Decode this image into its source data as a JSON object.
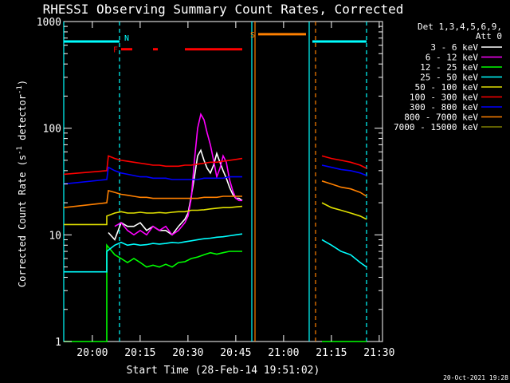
{
  "chart_data": {
    "type": "line",
    "title": "RHESSI Observing Summary Count Rates, Corrected",
    "xlabel": "Start Time (28-Feb-14 19:51:02)",
    "ylabel_parts": {
      "main": "Corrected Count Rate (s",
      "sup1": "-1",
      "mid": " detector",
      "sup2": "-1",
      "end": ")"
    },
    "x_unit": "minutes since 19:51:02",
    "xlim": [
      0,
      100
    ],
    "ylim": [
      1,
      1000
    ],
    "y_scale": "log",
    "x_ticks": [
      {
        "x": 8.97,
        "label": "20:00"
      },
      {
        "x": 23.97,
        "label": "20:15"
      },
      {
        "x": 38.97,
        "label": "20:30"
      },
      {
        "x": 53.97,
        "label": "20:45"
      },
      {
        "x": 68.97,
        "label": "21:00"
      },
      {
        "x": 83.97,
        "label": "21:15"
      },
      {
        "x": 98.97,
        "label": "21:30"
      }
    ],
    "y_ticks": [
      {
        "y": 1,
        "label": "1"
      },
      {
        "y": 10,
        "label": "10"
      },
      {
        "y": 100,
        "label": "100"
      },
      {
        "y": 1000,
        "label": "1000"
      }
    ],
    "legend_header": [
      "Det 1,3,4,5,6,9,",
      "Att 0"
    ],
    "legend_position": "right",
    "series": [
      {
        "name": "3 - 6 keV",
        "color": "#ffffff",
        "points": [
          [
            14,
            10.5
          ],
          [
            16,
            9
          ],
          [
            18,
            13
          ],
          [
            20,
            12
          ],
          [
            22,
            12
          ],
          [
            24,
            13
          ],
          [
            26,
            11
          ],
          [
            28,
            12
          ],
          [
            30,
            11
          ],
          [
            32,
            11
          ],
          [
            34,
            10
          ],
          [
            36,
            12
          ],
          [
            38,
            14
          ],
          [
            39,
            16
          ],
          [
            40,
            23
          ],
          [
            41,
            35
          ],
          [
            42,
            55
          ],
          [
            43,
            62
          ],
          [
            44,
            50
          ],
          [
            45,
            42
          ],
          [
            46,
            38
          ],
          [
            47,
            45
          ],
          [
            48,
            58
          ],
          [
            49,
            48
          ],
          [
            50,
            40
          ],
          [
            51,
            34
          ],
          [
            52,
            28
          ],
          [
            53,
            24
          ],
          [
            54,
            22
          ],
          [
            55,
            22
          ],
          [
            56,
            21
          ]
        ]
      },
      {
        "name": "6 - 12 keV",
        "color": "#ff00ff",
        "points": [
          [
            16,
            12
          ],
          [
            18,
            13
          ],
          [
            20,
            11
          ],
          [
            22,
            10
          ],
          [
            24,
            11
          ],
          [
            26,
            10
          ],
          [
            28,
            12
          ],
          [
            30,
            11
          ],
          [
            32,
            12
          ],
          [
            34,
            10
          ],
          [
            36,
            11
          ],
          [
            38,
            13
          ],
          [
            39,
            15
          ],
          [
            40,
            22
          ],
          [
            41,
            50
          ],
          [
            42,
            100
          ],
          [
            43,
            135
          ],
          [
            44,
            120
          ],
          [
            45,
            90
          ],
          [
            46,
            70
          ],
          [
            47,
            50
          ],
          [
            48,
            35
          ],
          [
            49,
            42
          ],
          [
            50,
            55
          ],
          [
            51,
            48
          ],
          [
            52,
            33
          ],
          [
            53,
            26
          ],
          [
            54,
            22
          ],
          [
            55,
            21
          ],
          [
            56,
            21
          ]
        ]
      },
      {
        "name": "12 - 25 keV",
        "color": "#00ff00",
        "points": [
          [
            0,
            1
          ],
          [
            13.5,
            1
          ],
          [
            13.5,
            8
          ],
          [
            16,
            6.5
          ],
          [
            18,
            6
          ],
          [
            20,
            5.5
          ],
          [
            22,
            6
          ],
          [
            24,
            5.5
          ],
          [
            26,
            5
          ],
          [
            28,
            5.2
          ],
          [
            30,
            5
          ],
          [
            32,
            5.3
          ],
          [
            34,
            5
          ],
          [
            36,
            5.5
          ],
          [
            38,
            5.6
          ],
          [
            40,
            6
          ],
          [
            42,
            6.2
          ],
          [
            44,
            6.5
          ],
          [
            46,
            6.8
          ],
          [
            48,
            6.6
          ],
          [
            50,
            6.8
          ],
          [
            52,
            7
          ],
          [
            54,
            7
          ],
          [
            56,
            7
          ]
        ]
      },
      {
        "name": "25 - 50 keV",
        "color": "#00ffff",
        "points": [
          [
            0,
            4.5
          ],
          [
            13.5,
            4.5
          ],
          [
            13.5,
            7
          ],
          [
            16,
            8
          ],
          [
            18,
            8.5
          ],
          [
            20,
            8
          ],
          [
            22,
            8.2
          ],
          [
            24,
            8
          ],
          [
            26,
            8.1
          ],
          [
            28,
            8.3
          ],
          [
            30,
            8.2
          ],
          [
            32,
            8.3
          ],
          [
            34,
            8.5
          ],
          [
            36,
            8.4
          ],
          [
            38,
            8.6
          ],
          [
            40,
            8.8
          ],
          [
            42,
            9
          ],
          [
            44,
            9.2
          ],
          [
            46,
            9.3
          ],
          [
            48,
            9.5
          ],
          [
            50,
            9.6
          ],
          [
            52,
            9.8
          ],
          [
            54,
            10
          ],
          [
            56,
            10.2
          ]
        ]
      },
      {
        "name": "50 - 100 keV",
        "color": "#e0e000",
        "points": [
          [
            0,
            12.5
          ],
          [
            13.5,
            12.5
          ],
          [
            13.5,
            15
          ],
          [
            16,
            16
          ],
          [
            18,
            16.5
          ],
          [
            20,
            16
          ],
          [
            22,
            16
          ],
          [
            24,
            16.3
          ],
          [
            26,
            16
          ],
          [
            28,
            16
          ],
          [
            30,
            16.2
          ],
          [
            32,
            16
          ],
          [
            34,
            16.3
          ],
          [
            36,
            16.5
          ],
          [
            38,
            16.5
          ],
          [
            40,
            17
          ],
          [
            42,
            17
          ],
          [
            44,
            17.2
          ],
          [
            46,
            17.5
          ],
          [
            48,
            17.8
          ],
          [
            50,
            18
          ],
          [
            52,
            18
          ],
          [
            54,
            18.3
          ],
          [
            56,
            18.5
          ]
        ]
      },
      {
        "name": "100 - 300 keV",
        "color": "#ff0000",
        "points": [
          [
            0,
            37
          ],
          [
            13.5,
            40
          ],
          [
            14,
            55
          ],
          [
            16,
            52
          ],
          [
            18,
            50
          ],
          [
            20,
            49
          ],
          [
            22,
            48
          ],
          [
            24,
            47
          ],
          [
            26,
            46
          ],
          [
            28,
            45
          ],
          [
            30,
            45
          ],
          [
            32,
            44
          ],
          [
            34,
            44
          ],
          [
            36,
            44
          ],
          [
            38,
            45
          ],
          [
            40,
            45
          ],
          [
            42,
            46
          ],
          [
            44,
            47
          ],
          [
            46,
            48
          ],
          [
            48,
            48
          ],
          [
            50,
            49
          ],
          [
            52,
            50
          ],
          [
            54,
            51
          ],
          [
            56,
            52
          ]
        ]
      },
      {
        "name": "300 - 800 keV",
        "color": "#0000ff",
        "points": [
          [
            0,
            30
          ],
          [
            13.5,
            33
          ],
          [
            14,
            43
          ],
          [
            16,
            40
          ],
          [
            18,
            38
          ],
          [
            20,
            37
          ],
          [
            22,
            36
          ],
          [
            24,
            35
          ],
          [
            26,
            35
          ],
          [
            28,
            34
          ],
          [
            30,
            34
          ],
          [
            32,
            34
          ],
          [
            34,
            33
          ],
          [
            36,
            33
          ],
          [
            38,
            33
          ],
          [
            40,
            33
          ],
          [
            42,
            33
          ],
          [
            44,
            34
          ],
          [
            46,
            34
          ],
          [
            48,
            34
          ],
          [
            50,
            34
          ],
          [
            52,
            35
          ],
          [
            54,
            35
          ],
          [
            56,
            35
          ]
        ]
      },
      {
        "name": "800 - 7000 keV",
        "color": "#ff8000",
        "points": [
          [
            0,
            18
          ],
          [
            13.5,
            20
          ],
          [
            14,
            26
          ],
          [
            16,
            25
          ],
          [
            18,
            24
          ],
          [
            20,
            23.5
          ],
          [
            22,
            23
          ],
          [
            24,
            22.5
          ],
          [
            26,
            22.5
          ],
          [
            28,
            22
          ],
          [
            30,
            22
          ],
          [
            32,
            22
          ],
          [
            34,
            22
          ],
          [
            36,
            22
          ],
          [
            38,
            22
          ],
          [
            40,
            22
          ],
          [
            42,
            22
          ],
          [
            44,
            22.5
          ],
          [
            46,
            22.5
          ],
          [
            48,
            22.5
          ],
          [
            50,
            23
          ],
          [
            52,
            23
          ],
          [
            54,
            23
          ],
          [
            56,
            23
          ]
        ]
      },
      {
        "name": "7000 - 15000 keV",
        "color": "#808000",
        "points": []
      }
    ],
    "series_after_gap": {
      "100 - 300 keV": [
        [
          81,
          55
        ],
        [
          84,
          52
        ],
        [
          87,
          50
        ],
        [
          90,
          48
        ],
        [
          93,
          45
        ],
        [
          95,
          42
        ]
      ],
      "300 - 800 keV": [
        [
          81,
          45
        ],
        [
          84,
          43
        ],
        [
          87,
          41
        ],
        [
          90,
          40
        ],
        [
          93,
          38
        ],
        [
          95,
          36
        ]
      ],
      "800 - 7000 keV": [
        [
          81,
          32
        ],
        [
          84,
          30
        ],
        [
          87,
          28
        ],
        [
          90,
          27
        ],
        [
          93,
          25
        ],
        [
          95,
          23
        ]
      ],
      "50 - 100 keV": [
        [
          81,
          20
        ],
        [
          84,
          18
        ],
        [
          87,
          17
        ],
        [
          90,
          16
        ],
        [
          93,
          15
        ],
        [
          95,
          14
        ]
      ],
      "25 - 50 keV": [
        [
          81,
          9
        ],
        [
          84,
          8
        ],
        [
          87,
          7
        ],
        [
          90,
          6.5
        ],
        [
          93,
          5.5
        ],
        [
          95,
          5
        ]
      ],
      "12 - 25 keV": [
        [
          81,
          1
        ],
        [
          95,
          1
        ]
      ]
    },
    "annotations": {
      "attenuator_label": "Att 0",
      "state_bars": [
        {
          "label": "N",
          "color": "#00ffff",
          "level": 650,
          "spans": [
            [
              0,
              17.5
            ],
            [
              78,
              95
            ]
          ]
        },
        {
          "label": "F",
          "color": "#ff0000",
          "level": 550,
          "spans": [
            [
              18,
              21.5
            ],
            [
              28,
              29.5
            ],
            [
              38,
              56
            ]
          ]
        },
        {
          "label": "S",
          "color": "#ff8000",
          "level": 760,
          "spans": [
            [
              61,
              76
            ]
          ]
        }
      ],
      "vlines": [
        {
          "x": 0,
          "color": "#00ffff",
          "style": "solid"
        },
        {
          "x": 17.5,
          "color": "#00ffff",
          "style": "dashed"
        },
        {
          "x": 60,
          "color": "#ff8000",
          "style": "solid"
        },
        {
          "x": 59,
          "color": "#00ffff",
          "style": "solid"
        },
        {
          "x": 77,
          "color": "#00ffff",
          "style": "solid"
        },
        {
          "x": 79,
          "color": "#ff8000",
          "style": "dashed"
        },
        {
          "x": 95,
          "color": "#00ffff",
          "style": "dashed"
        }
      ]
    }
  },
  "footer": {
    "timestamp": "20-Oct-2021 19:28"
  }
}
